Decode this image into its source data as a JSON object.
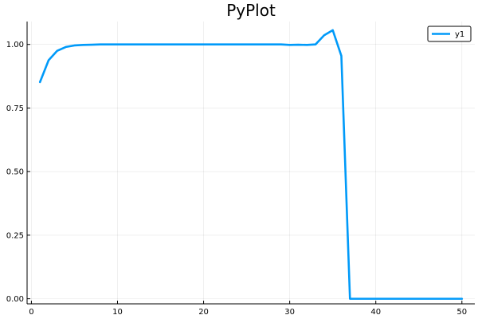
{
  "chart_data": {
    "type": "line",
    "title": "PyPlot",
    "xlabel": "",
    "ylabel": "",
    "xlim": [
      -0.5,
      51.5
    ],
    "ylim": [
      -0.02,
      1.09
    ],
    "x_ticks": [
      0,
      10,
      20,
      30,
      40,
      50
    ],
    "x_tick_labels": [
      "0",
      "10",
      "20",
      "30",
      "40",
      "50"
    ],
    "y_ticks": [
      0,
      0.25,
      0.5,
      0.75,
      1.0
    ],
    "y_tick_labels": [
      "0.00",
      "0.25",
      "0.50",
      "0.75",
      "1.00"
    ],
    "grid": true,
    "legend_position": "top-right",
    "series": [
      {
        "name": "y1",
        "color": "#009af9",
        "x": [
          1,
          2,
          3,
          4,
          5,
          6,
          7,
          8,
          9,
          10,
          11,
          12,
          13,
          14,
          15,
          16,
          17,
          18,
          19,
          20,
          21,
          22,
          23,
          24,
          25,
          26,
          27,
          28,
          29,
          30,
          31,
          32,
          33,
          34,
          35,
          36,
          37,
          38,
          39,
          40,
          41,
          42,
          43,
          44,
          45,
          46,
          47,
          48,
          49,
          50
        ],
        "y": [
          0.852,
          0.938,
          0.975,
          0.99,
          0.996,
          0.998,
          0.999,
          1.0,
          1.0,
          1.0,
          1.0,
          1.0,
          1.0,
          1.0,
          1.0,
          1.0,
          1.0,
          1.0,
          1.0,
          1.0,
          1.0,
          1.0,
          1.0,
          1.0,
          1.0,
          1.0,
          1.0,
          1.0,
          1.0,
          0.998,
          0.999,
          0.998,
          1.0,
          1.036,
          1.056,
          0.955,
          0.0,
          0.0,
          0.0,
          0.0,
          0.0,
          0.0,
          0.0,
          0.0,
          0.0,
          0.0,
          0.0,
          0.0,
          0.0,
          0.0
        ]
      }
    ]
  }
}
